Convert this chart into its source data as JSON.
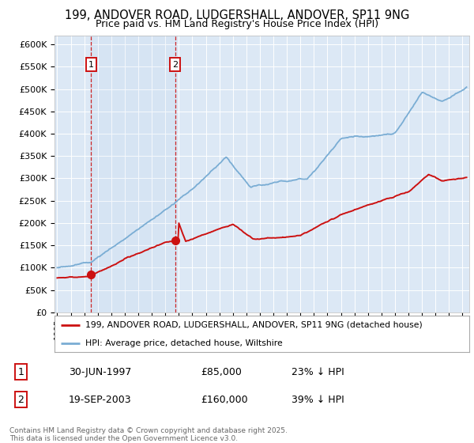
{
  "title_line1": "199, ANDOVER ROAD, LUDGERSHALL, ANDOVER, SP11 9NG",
  "title_line2": "Price paid vs. HM Land Registry's House Price Index (HPI)",
  "background_color": "#ffffff",
  "plot_bg_color": "#dce8f5",
  "grid_color": "#ffffff",
  "hpi_color": "#7aadd4",
  "price_color": "#cc1111",
  "purchase1_x": 1997.5,
  "purchase1_y": 85000,
  "purchase2_x": 2003.72,
  "purchase2_y": 160000,
  "legend_label1": "199, ANDOVER ROAD, LUDGERSHALL, ANDOVER, SP11 9NG (detached house)",
  "legend_label2": "HPI: Average price, detached house, Wiltshire",
  "table_row1_label": "1",
  "table_row1_date": "30-JUN-1997",
  "table_row1_price": "£85,000",
  "table_row1_hpi": "23% ↓ HPI",
  "table_row2_label": "2",
  "table_row2_date": "19-SEP-2003",
  "table_row2_price": "£160,000",
  "table_row2_hpi": "39% ↓ HPI",
  "footer": "Contains HM Land Registry data © Crown copyright and database right 2025.\nThis data is licensed under the Open Government Licence v3.0.",
  "ylim_max": 620000,
  "yticks": [
    0,
    50000,
    100000,
    150000,
    200000,
    250000,
    300000,
    350000,
    400000,
    450000,
    500000,
    550000,
    600000
  ],
  "xlim_min": 1994.8,
  "xlim_max": 2025.5
}
